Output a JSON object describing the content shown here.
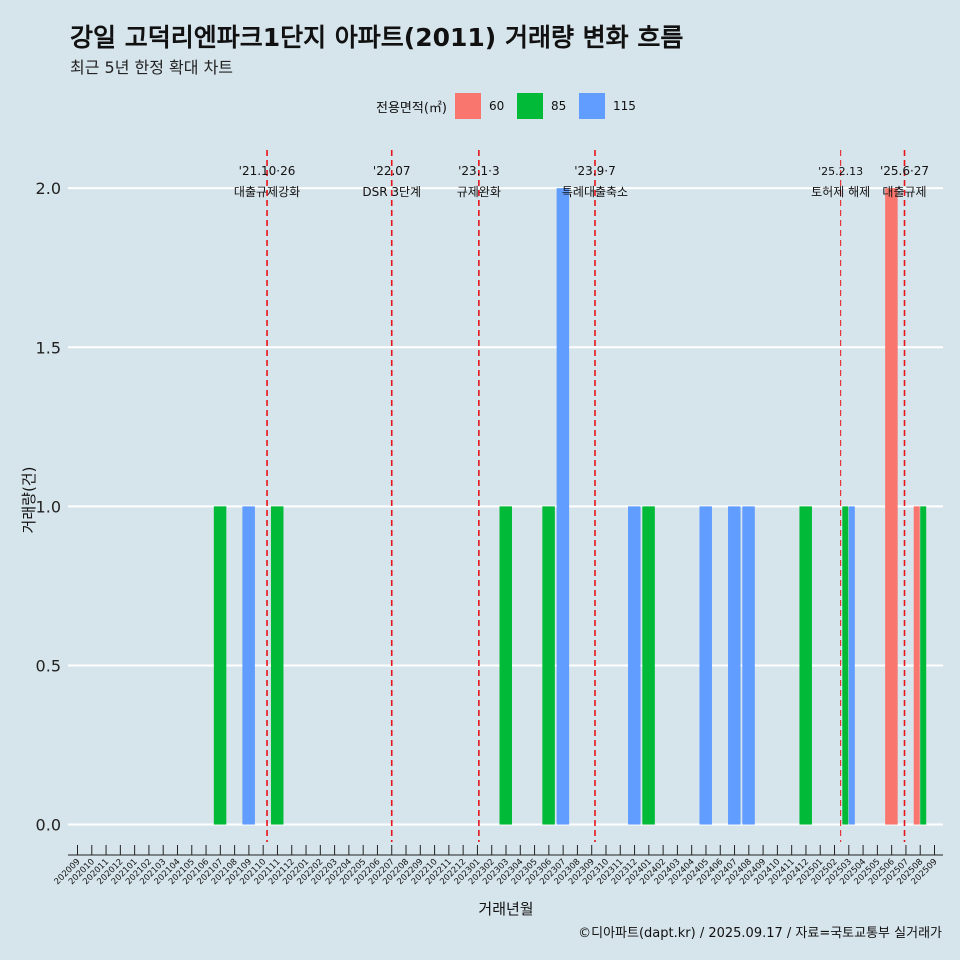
{
  "title": "강일 고덕리엔파크1단지 아파트(2011) 거래량 변화 흐름",
  "subtitle": "최근 5년 한정 확대 차트",
  "caption": "©디아파트(dapt.kr) / 2025.09.17 / 자료=국토교통부 실거래가",
  "colors": {
    "background": "#d6e4eb",
    "grid": "#ffffff",
    "event_line": "#e8141b",
    "s60": "#f8766d",
    "s85": "#00ba38",
    "s115": "#619cff"
  },
  "chart_data": {
    "type": "bar",
    "title": "강일 고덕리엔파크1단지 아파트(2011) 거래량 변화 흐름",
    "xlabel": "거래년월",
    "ylabel": "거래량(건)",
    "ylim": [
      -0.08,
      2.12
    ],
    "yticks": [
      0.0,
      0.5,
      1.0,
      1.5,
      2.0
    ],
    "ytick_labels": [
      "0.0",
      "0.5",
      "1.0",
      "1.5",
      "2.0"
    ],
    "legend": {
      "title": "전용면적(㎡)",
      "position": "top",
      "entries": [
        "60",
        "85",
        "115"
      ]
    },
    "categories": [
      "202009",
      "202010",
      "202011",
      "202012",
      "202101",
      "202102",
      "202103",
      "202104",
      "202105",
      "202106",
      "202107",
      "202108",
      "202109",
      "202110",
      "202111",
      "202112",
      "202201",
      "202202",
      "202203",
      "202204",
      "202205",
      "202206",
      "202207",
      "202208",
      "202209",
      "202210",
      "202211",
      "202212",
      "202301",
      "202302",
      "202303",
      "202304",
      "202305",
      "202306",
      "202307",
      "202308",
      "202309",
      "202310",
      "202311",
      "202312",
      "202401",
      "202402",
      "202403",
      "202404",
      "202405",
      "202406",
      "202407",
      "202408",
      "202409",
      "202410",
      "202411",
      "202412",
      "202501",
      "202502",
      "202503",
      "202504",
      "202505",
      "202506",
      "202507",
      "202508",
      "202509"
    ],
    "series": [
      {
        "name": "60",
        "data": {
          "202506": 2,
          "202508": 1
        }
      },
      {
        "name": "85",
        "data": {
          "202107": 1,
          "202111": 1,
          "202303": 1,
          "202306": 1,
          "202401": 1,
          "202412": 1,
          "202503": 1,
          "202508": 1
        }
      },
      {
        "name": "115",
        "data": {
          "202109": 1,
          "202307": 2,
          "202312": 1,
          "202405": 1,
          "202407": 1,
          "202408": 1,
          "202503": 1
        }
      }
    ],
    "events": [
      {
        "month": "202110",
        "offset": 0.27,
        "date": "'21.10·26",
        "label": "대출규제강화"
      },
      {
        "month": "202207",
        "offset": 0.0,
        "date": "'22.07",
        "label": "DSR 3단계"
      },
      {
        "month": "202301",
        "offset": 0.1,
        "date": "'23.1·3",
        "label": "규제완화"
      },
      {
        "month": "202309",
        "offset": 0.23,
        "date": "'23.9·7",
        "label": "특례대출축소"
      },
      {
        "month": "202502",
        "offset": 0.43,
        "date": "'25.2.13",
        "label": "토허제 해제"
      },
      {
        "month": "202506",
        "offset": 0.9,
        "date": "'25.6·27",
        "label": "대출규제"
      }
    ]
  }
}
